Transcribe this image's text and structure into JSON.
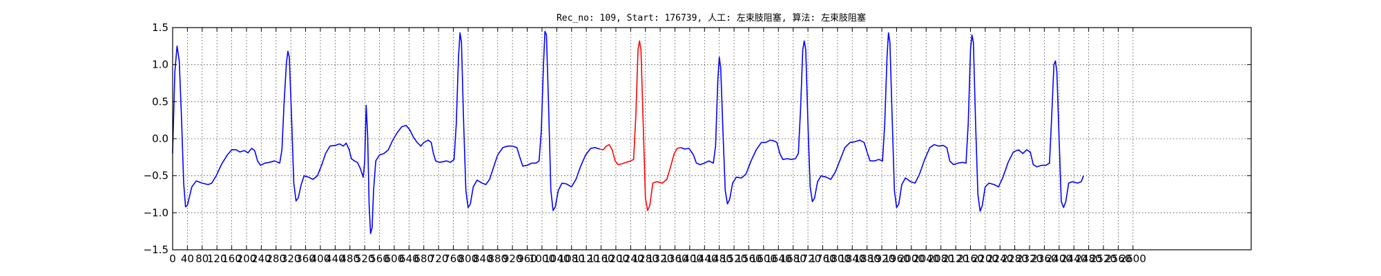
{
  "chart_data": {
    "type": "line",
    "title": "Rec_no: 109, Start: 176739, 人工: 左束肢阻塞, 算法: 左束肢阻塞",
    "xlabel": "",
    "ylabel": "",
    "xlim": [
      0,
      2920
    ],
    "ylim": [
      -1.5,
      1.5
    ],
    "x_ticks": [
      0,
      40,
      80,
      120,
      160,
      200,
      240,
      280,
      320,
      360,
      400,
      440,
      480,
      520,
      560,
      600,
      640,
      680,
      720,
      760,
      800,
      840,
      880,
      920,
      960,
      1000,
      1040,
      1080,
      1120,
      1160,
      1200,
      1240,
      1280,
      1320,
      1360,
      1400,
      1440,
      1480,
      1520,
      1560,
      1600,
      1640,
      1680,
      1720,
      1760,
      1800,
      1840,
      1880,
      1920,
      1960,
      2000,
      2040,
      2080,
      2120,
      2160,
      2200,
      2240,
      2280,
      2320,
      2360,
      2400,
      2440,
      2480,
      2520,
      2560,
      2600
    ],
    "x_tick_labels": [
      "0",
      "40",
      "80",
      "120",
      "160",
      "200",
      "240",
      "280",
      "320",
      "360",
      "400",
      "440",
      "480",
      "520",
      "560",
      "600",
      "640",
      "680",
      "720",
      "760",
      "800",
      "840",
      "880",
      "920",
      "960",
      "1000",
      "1040",
      "1080",
      "1120",
      "1160",
      "1200",
      "1240",
      "1280",
      "1320",
      "1360",
      "1400",
      "1440",
      "1480",
      "1520",
      "1560",
      "1600",
      "1640",
      "1680",
      "1720",
      "1760",
      "1800",
      "1840",
      "1880",
      "1920",
      "1960",
      "2000",
      "2040",
      "2080",
      "2120",
      "2160",
      "2200",
      "2240",
      "2280",
      "2320",
      "2360",
      "2400",
      "2440",
      "2480",
      "2520",
      "2560",
      "2600"
    ],
    "y_ticks": [
      -1.5,
      -1.0,
      -0.5,
      0.0,
      0.5,
      1.0,
      1.5
    ],
    "y_tick_labels": [
      "−1.5",
      "−1.0",
      "−0.5",
      "0.0",
      "0.5",
      "1.0",
      "1.5"
    ],
    "grid": true,
    "series": [
      {
        "color": "#0000ff",
        "points": [
          [
            0,
            -0.2
          ],
          [
            6,
            0.9
          ],
          [
            12,
            1.25
          ],
          [
            18,
            1.05
          ],
          [
            24,
            0.3
          ],
          [
            30,
            -0.6
          ],
          [
            35,
            -0.92
          ],
          [
            40,
            -0.9
          ],
          [
            52,
            -0.65
          ],
          [
            64,
            -0.57
          ],
          [
            80,
            -0.6
          ],
          [
            96,
            -0.62
          ],
          [
            106,
            -0.6
          ],
          [
            118,
            -0.5
          ],
          [
            132,
            -0.35
          ],
          [
            148,
            -0.22
          ],
          [
            160,
            -0.15
          ],
          [
            172,
            -0.15
          ],
          [
            182,
            -0.18
          ],
          [
            194,
            -0.16
          ],
          [
            204,
            -0.19
          ],
          [
            214,
            -0.13
          ],
          [
            222,
            -0.16
          ],
          [
            230,
            -0.3
          ],
          [
            238,
            -0.36
          ],
          [
            250,
            -0.33
          ],
          [
            262,
            -0.32
          ],
          [
            276,
            -0.3
          ],
          [
            290,
            -0.33
          ],
          [
            296,
            -0.15
          ],
          [
            302,
            0.5
          ],
          [
            308,
            1.02
          ],
          [
            312,
            1.18
          ],
          [
            316,
            1.1
          ],
          [
            322,
            0.3
          ],
          [
            328,
            -0.6
          ],
          [
            334,
            -0.84
          ],
          [
            340,
            -0.8
          ],
          [
            348,
            -0.62
          ],
          [
            356,
            -0.5
          ],
          [
            368,
            -0.52
          ],
          [
            380,
            -0.55
          ],
          [
            392,
            -0.5
          ],
          [
            404,
            -0.35
          ],
          [
            414,
            -0.2
          ],
          [
            426,
            -0.1
          ],
          [
            440,
            -0.09
          ],
          [
            452,
            -0.07
          ],
          [
            462,
            -0.1
          ],
          [
            470,
            -0.06
          ],
          [
            478,
            -0.15
          ],
          [
            484,
            -0.27
          ],
          [
            492,
            -0.3
          ],
          [
            500,
            -0.32
          ],
          [
            508,
            -0.4
          ],
          [
            516,
            -0.52
          ],
          [
            520,
            -0.3
          ],
          [
            524,
            0.45
          ],
          [
            528,
            0.05
          ],
          [
            532,
            -0.9
          ],
          [
            536,
            -1.28
          ],
          [
            540,
            -1.2
          ],
          [
            544,
            -0.7
          ],
          [
            550,
            -0.3
          ],
          [
            560,
            -0.22
          ],
          [
            572,
            -0.2
          ],
          [
            584,
            -0.15
          ],
          [
            596,
            -0.02
          ],
          [
            608,
            0.08
          ],
          [
            620,
            0.16
          ],
          [
            632,
            0.18
          ],
          [
            642,
            0.12
          ],
          [
            652,
            0.02
          ],
          [
            662,
            -0.05
          ],
          [
            672,
            -0.1
          ],
          [
            680,
            -0.05
          ],
          [
            692,
            -0.02
          ],
          [
            700,
            -0.05
          ],
          [
            706,
            -0.2
          ],
          [
            712,
            -0.3
          ],
          [
            722,
            -0.32
          ],
          [
            732,
            -0.31
          ],
          [
            742,
            -0.3
          ],
          [
            752,
            -0.32
          ],
          [
            762,
            -0.28
          ],
          [
            768,
            0.2
          ],
          [
            774,
            1.1
          ],
          [
            778,
            1.43
          ],
          [
            782,
            1.3
          ],
          [
            788,
            0.2
          ],
          [
            794,
            -0.7
          ],
          [
            800,
            -0.93
          ],
          [
            806,
            -0.88
          ],
          [
            814,
            -0.65
          ],
          [
            824,
            -0.56
          ],
          [
            838,
            -0.6
          ],
          [
            848,
            -0.62
          ],
          [
            858,
            -0.55
          ],
          [
            868,
            -0.4
          ],
          [
            880,
            -0.22
          ],
          [
            894,
            -0.12
          ],
          [
            908,
            -0.1
          ],
          [
            920,
            -0.1
          ],
          [
            932,
            -0.12
          ],
          [
            940,
            -0.25
          ],
          [
            948,
            -0.37
          ],
          [
            960,
            -0.36
          ],
          [
            972,
            -0.33
          ],
          [
            984,
            -0.33
          ],
          [
            992,
            -0.3
          ],
          [
            998,
            0.1
          ],
          [
            1004,
            1.0
          ],
          [
            1008,
            1.45
          ],
          [
            1012,
            1.4
          ],
          [
            1018,
            0.4
          ],
          [
            1024,
            -0.7
          ],
          [
            1030,
            -0.97
          ],
          [
            1036,
            -0.92
          ],
          [
            1044,
            -0.7
          ],
          [
            1054,
            -0.6
          ],
          [
            1066,
            -0.61
          ],
          [
            1080,
            -0.65
          ],
          [
            1092,
            -0.55
          ],
          [
            1104,
            -0.38
          ],
          [
            1118,
            -0.22
          ],
          [
            1132,
            -0.13
          ],
          [
            1144,
            -0.12
          ],
          [
            1156,
            -0.14
          ]
        ]
      },
      {
        "color": "#ff0000",
        "points": [
          [
            1156,
            -0.14
          ],
          [
            1166,
            -0.15
          ],
          [
            1174,
            -0.1
          ],
          [
            1182,
            -0.08
          ],
          [
            1190,
            -0.15
          ],
          [
            1198,
            -0.3
          ],
          [
            1206,
            -0.35
          ],
          [
            1216,
            -0.34
          ],
          [
            1228,
            -0.32
          ],
          [
            1240,
            -0.3
          ],
          [
            1248,
            -0.28
          ],
          [
            1254,
            0.3
          ],
          [
            1260,
            1.2
          ],
          [
            1264,
            1.32
          ],
          [
            1268,
            1.2
          ],
          [
            1274,
            0.2
          ],
          [
            1280,
            -0.8
          ],
          [
            1286,
            -0.97
          ],
          [
            1292,
            -0.9
          ],
          [
            1300,
            -0.6
          ],
          [
            1312,
            -0.58
          ],
          [
            1326,
            -0.6
          ],
          [
            1338,
            -0.55
          ],
          [
            1348,
            -0.38
          ],
          [
            1358,
            -0.2
          ],
          [
            1366,
            -0.13
          ],
          [
            1376,
            -0.12
          ]
        ]
      },
      {
        "color": "#0000ff",
        "points": [
          [
            1376,
            -0.12
          ],
          [
            1386,
            -0.14
          ],
          [
            1398,
            -0.13
          ],
          [
            1410,
            -0.22
          ],
          [
            1418,
            -0.33
          ],
          [
            1428,
            -0.35
          ],
          [
            1440,
            -0.33
          ],
          [
            1452,
            -0.3
          ],
          [
            1464,
            -0.33
          ],
          [
            1470,
            -0.1
          ],
          [
            1476,
            0.8
          ],
          [
            1480,
            1.1
          ],
          [
            1484,
            0.95
          ],
          [
            1490,
            0.1
          ],
          [
            1496,
            -0.7
          ],
          [
            1502,
            -0.88
          ],
          [
            1508,
            -0.82
          ],
          [
            1516,
            -0.6
          ],
          [
            1526,
            -0.52
          ],
          [
            1540,
            -0.53
          ],
          [
            1552,
            -0.48
          ],
          [
            1566,
            -0.3
          ],
          [
            1580,
            -0.15
          ],
          [
            1594,
            -0.05
          ],
          [
            1606,
            -0.05
          ],
          [
            1618,
            -0.02
          ],
          [
            1628,
            -0.03
          ],
          [
            1636,
            -0.05
          ],
          [
            1644,
            -0.2
          ],
          [
            1652,
            -0.28
          ],
          [
            1664,
            -0.27
          ],
          [
            1676,
            -0.28
          ],
          [
            1686,
            -0.27
          ],
          [
            1694,
            -0.2
          ],
          [
            1700,
            0.4
          ],
          [
            1706,
            1.2
          ],
          [
            1710,
            1.32
          ],
          [
            1714,
            1.2
          ],
          [
            1720,
            0.2
          ],
          [
            1726,
            -0.65
          ],
          [
            1732,
            -0.85
          ],
          [
            1738,
            -0.8
          ],
          [
            1746,
            -0.58
          ],
          [
            1756,
            -0.5
          ],
          [
            1770,
            -0.52
          ],
          [
            1782,
            -0.55
          ],
          [
            1794,
            -0.45
          ],
          [
            1806,
            -0.3
          ],
          [
            1820,
            -0.12
          ],
          [
            1834,
            -0.05
          ],
          [
            1848,
            -0.04
          ],
          [
            1860,
            -0.02
          ],
          [
            1872,
            -0.05
          ],
          [
            1880,
            -0.18
          ],
          [
            1888,
            -0.3
          ],
          [
            1900,
            -0.3
          ],
          [
            1912,
            -0.28
          ],
          [
            1922,
            -0.3
          ],
          [
            1928,
            0.2
          ],
          [
            1934,
            1.1
          ],
          [
            1938,
            1.43
          ],
          [
            1942,
            1.3
          ],
          [
            1948,
            0.3
          ],
          [
            1954,
            -0.7
          ],
          [
            1960,
            -0.93
          ],
          [
            1966,
            -0.88
          ],
          [
            1974,
            -0.62
          ],
          [
            1984,
            -0.53
          ],
          [
            1998,
            -0.58
          ],
          [
            2010,
            -0.6
          ],
          [
            2022,
            -0.48
          ],
          [
            2036,
            -0.28
          ],
          [
            2050,
            -0.12
          ],
          [
            2062,
            -0.08
          ],
          [
            2074,
            -0.1
          ],
          [
            2086,
            -0.09
          ],
          [
            2096,
            -0.12
          ],
          [
            2104,
            -0.3
          ],
          [
            2114,
            -0.35
          ],
          [
            2126,
            -0.33
          ],
          [
            2138,
            -0.32
          ],
          [
            2148,
            -0.33
          ],
          [
            2154,
            0.2
          ],
          [
            2160,
            1.2
          ],
          [
            2164,
            1.4
          ],
          [
            2168,
            1.3
          ],
          [
            2174,
            0.2
          ],
          [
            2180,
            -0.75
          ],
          [
            2186,
            -0.98
          ],
          [
            2192,
            -0.9
          ],
          [
            2200,
            -0.65
          ],
          [
            2210,
            -0.6
          ],
          [
            2224,
            -0.62
          ],
          [
            2236,
            -0.65
          ],
          [
            2248,
            -0.52
          ],
          [
            2262,
            -0.32
          ],
          [
            2276,
            -0.18
          ],
          [
            2290,
            -0.15
          ],
          [
            2302,
            -0.2
          ],
          [
            2312,
            -0.15
          ],
          [
            2322,
            -0.18
          ],
          [
            2330,
            -0.35
          ],
          [
            2340,
            -0.38
          ],
          [
            2352,
            -0.36
          ],
          [
            2364,
            -0.36
          ],
          [
            2374,
            -0.33
          ],
          [
            2380,
            0.3
          ],
          [
            2386,
            1.0
          ],
          [
            2390,
            1.05
          ],
          [
            2394,
            0.9
          ],
          [
            2400,
            0.0
          ],
          [
            2406,
            -0.85
          ],
          [
            2412,
            -0.93
          ],
          [
            2418,
            -0.85
          ],
          [
            2426,
            -0.6
          ],
          [
            2436,
            -0.58
          ],
          [
            2450,
            -0.6
          ],
          [
            2460,
            -0.58
          ],
          [
            2466,
            -0.5
          ]
        ]
      }
    ]
  }
}
